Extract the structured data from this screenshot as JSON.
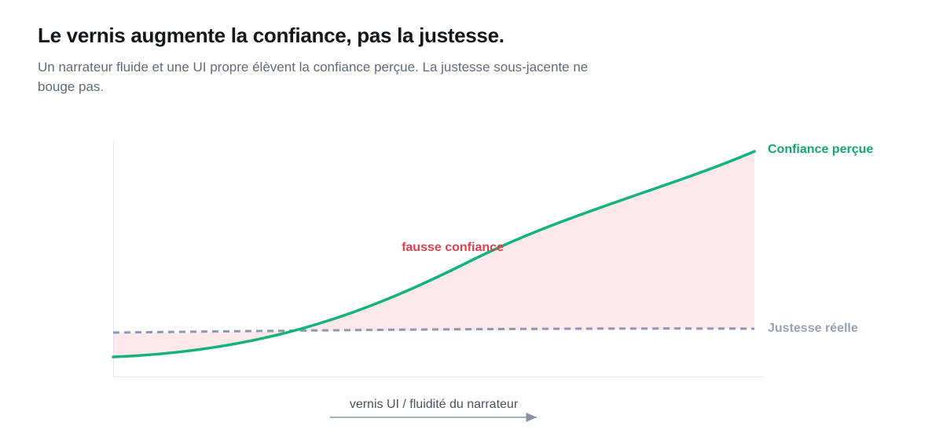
{
  "header": {
    "title": "Le vernis augmente la confiance, pas la justesse.",
    "subtitle": "Un narrateur fluide et une UI propre élèvent la confiance perçue. La justesse sous-jacente ne bouge pas."
  },
  "diagram": {
    "curve_labels": [
      "Confiance perçue",
      "Justesse réelle"
    ],
    "gap_label": "fausse confiance",
    "x_axis_label": "vernis UI / fluidité du narrateur"
  }
}
